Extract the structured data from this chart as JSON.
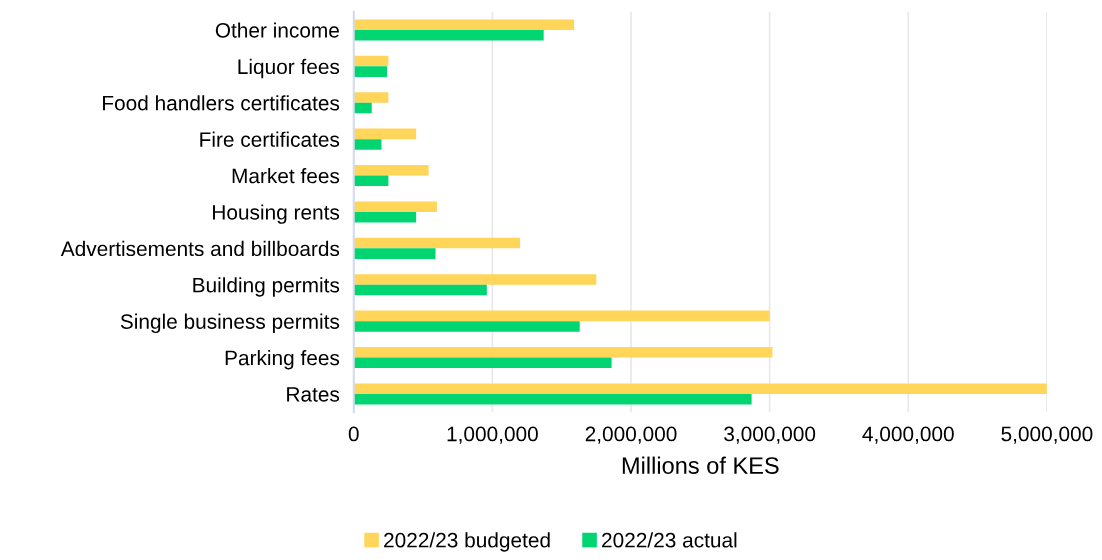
{
  "chart_data": {
    "type": "bar",
    "orientation": "horizontal",
    "xlabel": "Millions of KES",
    "categories": [
      "Other income",
      "Liquor fees",
      "Food handlers certificates",
      "Fire certificates",
      "Market fees",
      "Housing rents",
      "Advertisements and billboards",
      "Building permits",
      "Single business permits",
      "Parking fees",
      "Rates"
    ],
    "series": [
      {
        "name": "2022/23 budgeted",
        "color": "#ffd55a",
        "values": [
          1590000,
          250000,
          250000,
          450000,
          540000,
          600000,
          1200000,
          1750000,
          3000000,
          3020000,
          5000000
        ]
      },
      {
        "name": "2022/23 actual",
        "color": "#00d572",
        "values": [
          1370000,
          240000,
          130000,
          200000,
          250000,
          450000,
          590000,
          960000,
          1630000,
          1860000,
          2870000
        ]
      }
    ],
    "xlim": [
      0,
      5000000
    ],
    "xticks": [
      {
        "value": 0,
        "label": "0"
      },
      {
        "value": 1000000,
        "label": "1,000,000"
      },
      {
        "value": 2000000,
        "label": "2,000,000"
      },
      {
        "value": 3000000,
        "label": "3,000,000"
      },
      {
        "value": 4000000,
        "label": "4,000,000"
      },
      {
        "value": 5000000,
        "label": "5,000,000"
      }
    ],
    "grid": "x",
    "legend": "bottom"
  }
}
